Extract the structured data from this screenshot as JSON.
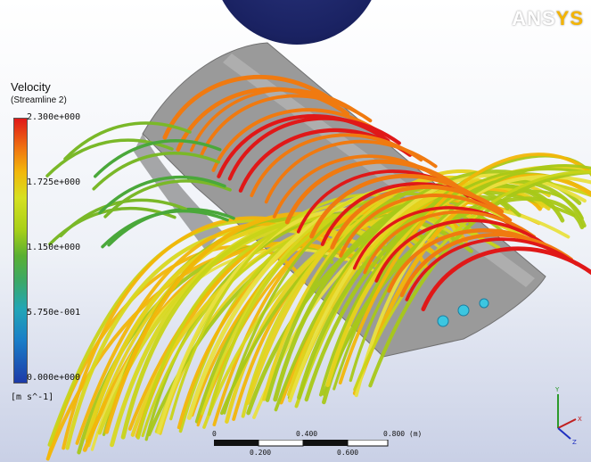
{
  "brand": {
    "logo_main": "ANS",
    "logo_accent": "YS"
  },
  "legend": {
    "title": "Velocity",
    "subtitle": "(Streamline 2)",
    "ticks": [
      "2.300e+000",
      "1.725e+000",
      "1.150e+000",
      "5.750e-001",
      "0.000e+000"
    ],
    "unit": "[m s^-1]"
  },
  "scale": {
    "top_labels": [
      "0",
      "0.400",
      "0.800 (m)"
    ],
    "bottom_labels": [
      "0.200",
      "0.600"
    ]
  },
  "axes": {
    "x": "X",
    "y": "Y",
    "z": "Z"
  },
  "colors": {
    "background_top": "#ffffff",
    "background_bottom": "#c9d0e6",
    "blade": "#8f8f8f",
    "high_velocity": "#e01818",
    "mid_velocity": "#d6e020",
    "low_velocity": "#1c3aa8",
    "badge": "#1a2262"
  }
}
